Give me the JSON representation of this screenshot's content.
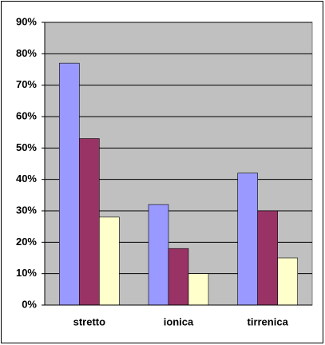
{
  "chart_data": {
    "type": "bar",
    "categories": [
      "stretto",
      "ionica",
      "tirrenica"
    ],
    "series": [
      {
        "color": "#9999ff",
        "values": [
          77,
          32,
          42
        ]
      },
      {
        "color": "#993366",
        "values": [
          53,
          18,
          30
        ]
      },
      {
        "color": "#ffffcc",
        "values": [
          28,
          10,
          15
        ]
      }
    ],
    "ylim": [
      0,
      90
    ],
    "yticks": [
      {
        "value": 0,
        "label": "0%"
      },
      {
        "value": 10,
        "label": "10%"
      },
      {
        "value": 20,
        "label": "20%"
      },
      {
        "value": 30,
        "label": "30%"
      },
      {
        "value": 40,
        "label": "40%"
      },
      {
        "value": 50,
        "label": "50%"
      },
      {
        "value": 60,
        "label": "60%"
      },
      {
        "value": 70,
        "label": "70%"
      },
      {
        "value": 80,
        "label": "80%"
      },
      {
        "value": 90,
        "label": "90%"
      }
    ],
    "grid": true,
    "plot_background": "#c0c0c0"
  }
}
